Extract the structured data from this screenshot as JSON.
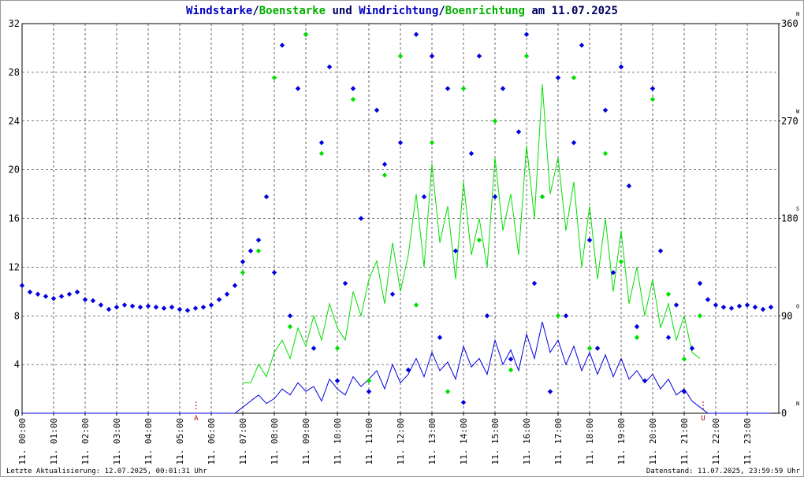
{
  "chart_data": {
    "type": "line",
    "title_parts": [
      {
        "text": "Windstarke",
        "color": "#0000c0"
      },
      {
        "text": "/",
        "color": "#000060"
      },
      {
        "text": "Boenstarke",
        "color": "#00b000"
      },
      {
        "text": " und ",
        "color": "#000060"
      },
      {
        "text": "Windrichtung",
        "color": "#0000c0"
      },
      {
        "text": "/",
        "color": "#000060"
      },
      {
        "text": "Boenrichtung",
        "color": "#00b000"
      },
      {
        "text": " am 11.07.2025",
        "color": "#000060"
      }
    ],
    "footer_left": "Letzte Aktualisierung: 12.07.2025, 00:01:31 Uhr",
    "footer_right": "Datenstand: 11.07.2025, 23:59:59 Uhr",
    "xlim": [
      0,
      24
    ],
    "xticks": [
      {
        "value": 0,
        "label": "11. 00:00"
      },
      {
        "value": 1,
        "label": "11. 01:00"
      },
      {
        "value": 2,
        "label": "11. 02:00"
      },
      {
        "value": 3,
        "label": "11. 03:00"
      },
      {
        "value": 4,
        "label": "11. 04:00"
      },
      {
        "value": 5,
        "label": "11. 05:00"
      },
      {
        "value": 6,
        "label": "11. 06:00"
      },
      {
        "value": 7,
        "label": "11. 07:00"
      },
      {
        "value": 8,
        "label": "11. 08:00"
      },
      {
        "value": 9,
        "label": "11. 09:00"
      },
      {
        "value": 10,
        "label": "11. 10:00"
      },
      {
        "value": 11,
        "label": "11. 11:00"
      },
      {
        "value": 12,
        "label": "11. 12:00"
      },
      {
        "value": 13,
        "label": "11. 13:00"
      },
      {
        "value": 14,
        "label": "11. 14:00"
      },
      {
        "value": 15,
        "label": "11. 15:00"
      },
      {
        "value": 16,
        "label": "11. 16:00"
      },
      {
        "value": 17,
        "label": "11. 17:00"
      },
      {
        "value": 18,
        "label": "11. 18:00"
      },
      {
        "value": 19,
        "label": "11. 19:00"
      },
      {
        "value": 20,
        "label": "11. 20:00"
      },
      {
        "value": 21,
        "label": "11. 21:00"
      },
      {
        "value": 22,
        "label": "11. 22:00"
      },
      {
        "value": 23,
        "label": "11. 23:00"
      }
    ],
    "ylim": [
      0,
      32
    ],
    "yticks": [
      0,
      4,
      8,
      12,
      16,
      20,
      24,
      28,
      32
    ],
    "y2lim": [
      0,
      360
    ],
    "y2ticks": [
      0,
      90,
      180,
      270,
      360
    ],
    "y2tick_compass": [
      "N",
      "O",
      "S",
      "W",
      "N"
    ],
    "grid": true,
    "sun_markers": [
      {
        "label": "A",
        "x": 5.52
      },
      {
        "label": "U",
        "x": 21.6
      }
    ],
    "x": [
      0,
      0.25,
      0.5,
      0.75,
      1,
      1.25,
      1.5,
      1.75,
      2,
      2.25,
      2.5,
      2.75,
      3,
      3.25,
      3.5,
      3.75,
      4,
      4.25,
      4.5,
      4.75,
      5,
      5.25,
      5.5,
      5.75,
      6,
      6.25,
      6.5,
      6.75,
      7,
      7.25,
      7.5,
      7.75,
      8,
      8.25,
      8.5,
      8.75,
      9,
      9.25,
      9.5,
      9.75,
      10,
      10.25,
      10.5,
      10.75,
      11,
      11.25,
      11.5,
      11.75,
      12,
      12.25,
      12.5,
      12.75,
      13,
      13.25,
      13.5,
      13.75,
      14,
      14.25,
      14.5,
      14.75,
      15,
      15.25,
      15.5,
      15.75,
      16,
      16.25,
      16.5,
      16.75,
      17,
      17.25,
      17.5,
      17.75,
      18,
      18.25,
      18.5,
      18.75,
      19,
      19.25,
      19.5,
      19.75,
      20,
      20.25,
      20.5,
      20.75,
      21,
      21.25,
      21.5,
      21.75,
      22,
      22.25,
      22.5,
      22.75,
      23,
      23.25,
      23.5,
      23.75
    ],
    "series": [
      {
        "name": "Boenstarke",
        "kind": "line",
        "color": "#00e000",
        "values": [
          null,
          null,
          null,
          null,
          null,
          null,
          null,
          null,
          null,
          null,
          null,
          null,
          null,
          null,
          null,
          null,
          null,
          null,
          null,
          null,
          null,
          null,
          null,
          null,
          null,
          null,
          null,
          null,
          2.5,
          2.5,
          4,
          3,
          5,
          6,
          4.5,
          7,
          5.5,
          8,
          6,
          9,
          7,
          6,
          10,
          8,
          11,
          12.5,
          9,
          14,
          10,
          13,
          18,
          12,
          20.5,
          14,
          17,
          11,
          19,
          13,
          16,
          12,
          21,
          15,
          18,
          13,
          22,
          16,
          27,
          18,
          21,
          15,
          19,
          12,
          17,
          11,
          16,
          10,
          15,
          9,
          12,
          8,
          11,
          7,
          9,
          6,
          8,
          5,
          4.5,
          null,
          null,
          null,
          null,
          null,
          null,
          null,
          null,
          null
        ]
      },
      {
        "name": "Windstarke",
        "kind": "line",
        "color": "#0000e0",
        "values": [
          0,
          0,
          0,
          0,
          0,
          0,
          0,
          0,
          0,
          0,
          0,
          0,
          0,
          0,
          0,
          0,
          0,
          0,
          0,
          0,
          0,
          0,
          0,
          0,
          0,
          0,
          0,
          0,
          0.5,
          1,
          1.5,
          0.8,
          1.2,
          2,
          1.5,
          2.5,
          1.8,
          2.2,
          1,
          2.8,
          2,
          1.5,
          3,
          2.2,
          2.8,
          3.5,
          2,
          4,
          2.5,
          3.2,
          4.5,
          3,
          5,
          3.5,
          4.2,
          2.8,
          5.5,
          3.8,
          4.5,
          3.2,
          6,
          4,
          5.2,
          3.5,
          6.5,
          4.5,
          7.5,
          5,
          6,
          4,
          5.5,
          3.5,
          5,
          3.2,
          4.8,
          3,
          4.5,
          2.8,
          3.5,
          2.5,
          3.2,
          2,
          2.8,
          1.5,
          2,
          1,
          0.5,
          0,
          0,
          0,
          0,
          0,
          0,
          0,
          0,
          0
        ]
      },
      {
        "name": "Windrichtung",
        "kind": "scatter",
        "axis": "y2",
        "color": "#0000e0",
        "values": [
          118,
          112,
          110,
          108,
          106,
          108,
          110,
          112,
          105,
          104,
          100,
          96,
          98,
          100,
          99,
          98,
          99,
          98,
          97,
          98,
          96,
          95,
          97,
          98,
          100,
          105,
          110,
          118,
          140,
          150,
          160,
          200,
          130,
          340,
          90,
          300,
          350,
          60,
          250,
          320,
          30,
          120,
          300,
          180,
          20,
          280,
          230,
          110,
          250,
          40,
          350,
          200,
          330,
          70,
          300,
          150,
          10,
          240,
          330,
          90,
          200,
          300,
          50,
          260,
          350,
          120,
          200,
          20,
          310,
          90,
          250,
          340,
          160,
          60,
          280,
          130,
          320,
          210,
          80,
          30,
          300,
          150,
          70,
          100,
          20,
          60,
          120,
          105,
          100,
          98,
          97,
          99,
          100,
          98,
          96,
          98
        ]
      },
      {
        "name": "Boenrichtung",
        "kind": "scatter",
        "axis": "y2",
        "color": "#00e000",
        "values": [
          null,
          null,
          null,
          null,
          null,
          null,
          null,
          null,
          null,
          null,
          null,
          null,
          null,
          null,
          null,
          null,
          null,
          null,
          null,
          null,
          null,
          null,
          null,
          null,
          null,
          null,
          null,
          null,
          130,
          null,
          150,
          null,
          310,
          null,
          80,
          null,
          350,
          null,
          240,
          null,
          60,
          null,
          290,
          null,
          30,
          null,
          220,
          null,
          330,
          null,
          100,
          null,
          250,
          null,
          20,
          null,
          300,
          null,
          160,
          null,
          270,
          null,
          40,
          null,
          330,
          null,
          200,
          null,
          90,
          null,
          310,
          null,
          60,
          null,
          240,
          null,
          140,
          null,
          70,
          null,
          290,
          null,
          110,
          null,
          50,
          null,
          90,
          null,
          null,
          null,
          null,
          null,
          null,
          null,
          null,
          null
        ]
      }
    ]
  }
}
